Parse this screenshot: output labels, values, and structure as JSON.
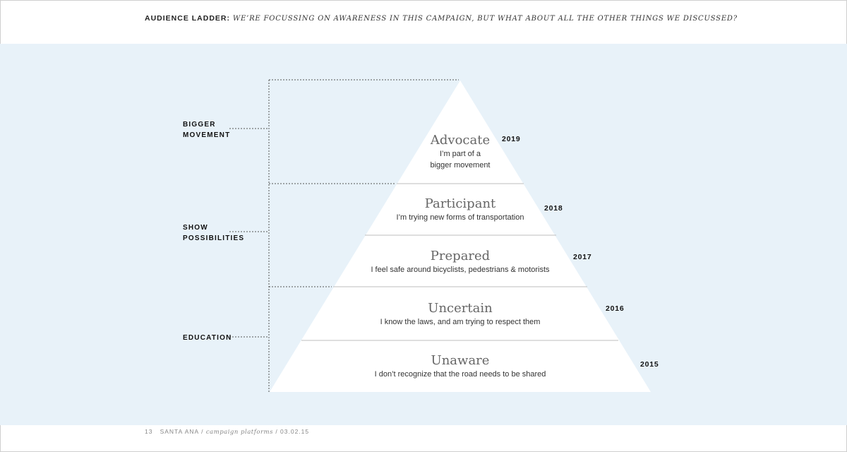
{
  "header": {
    "label": "AUDIENCE LADDER:",
    "question": "WE’RE FOCUSSING ON AWARENESS IN THIS CAMPAIGN, BUT WHAT ABOUT ALL THE OTHER THINGS WE DISCUSSED?"
  },
  "pyramid": {
    "tiers": [
      {
        "title": "Advocate",
        "desc": [
          "I’m part of a",
          "bigger movement"
        ],
        "year": "2019"
      },
      {
        "title": "Participant",
        "desc": [
          "I’m trying new forms of transportation"
        ],
        "year": "2018"
      },
      {
        "title": "Prepared",
        "desc": [
          "I feel safe around bicyclists, pedestrians & motorists"
        ],
        "year": "2017"
      },
      {
        "title": "Uncertain",
        "desc": [
          "I know the laws, and am trying to respect them"
        ],
        "year": "2016"
      },
      {
        "title": "Unaware",
        "desc": [
          "I don’t recognize that the road needs to be shared"
        ],
        "year": "2015"
      }
    ]
  },
  "groups": [
    {
      "lines": [
        "BIGGER",
        "MOVEMENT"
      ]
    },
    {
      "lines": [
        "SHOW",
        "POSSIBILITIES"
      ]
    },
    {
      "lines": [
        "EDUCATION"
      ]
    }
  ],
  "footer": {
    "page": "13",
    "client": "SANTA ANA /",
    "doc": "campaign platforms",
    "date": "/ 03.02.15"
  },
  "colors": {
    "panel": "#e8f2f9",
    "pyramid": "#ffffff",
    "divider": "#bdbdbd",
    "bracket": "#555555"
  }
}
